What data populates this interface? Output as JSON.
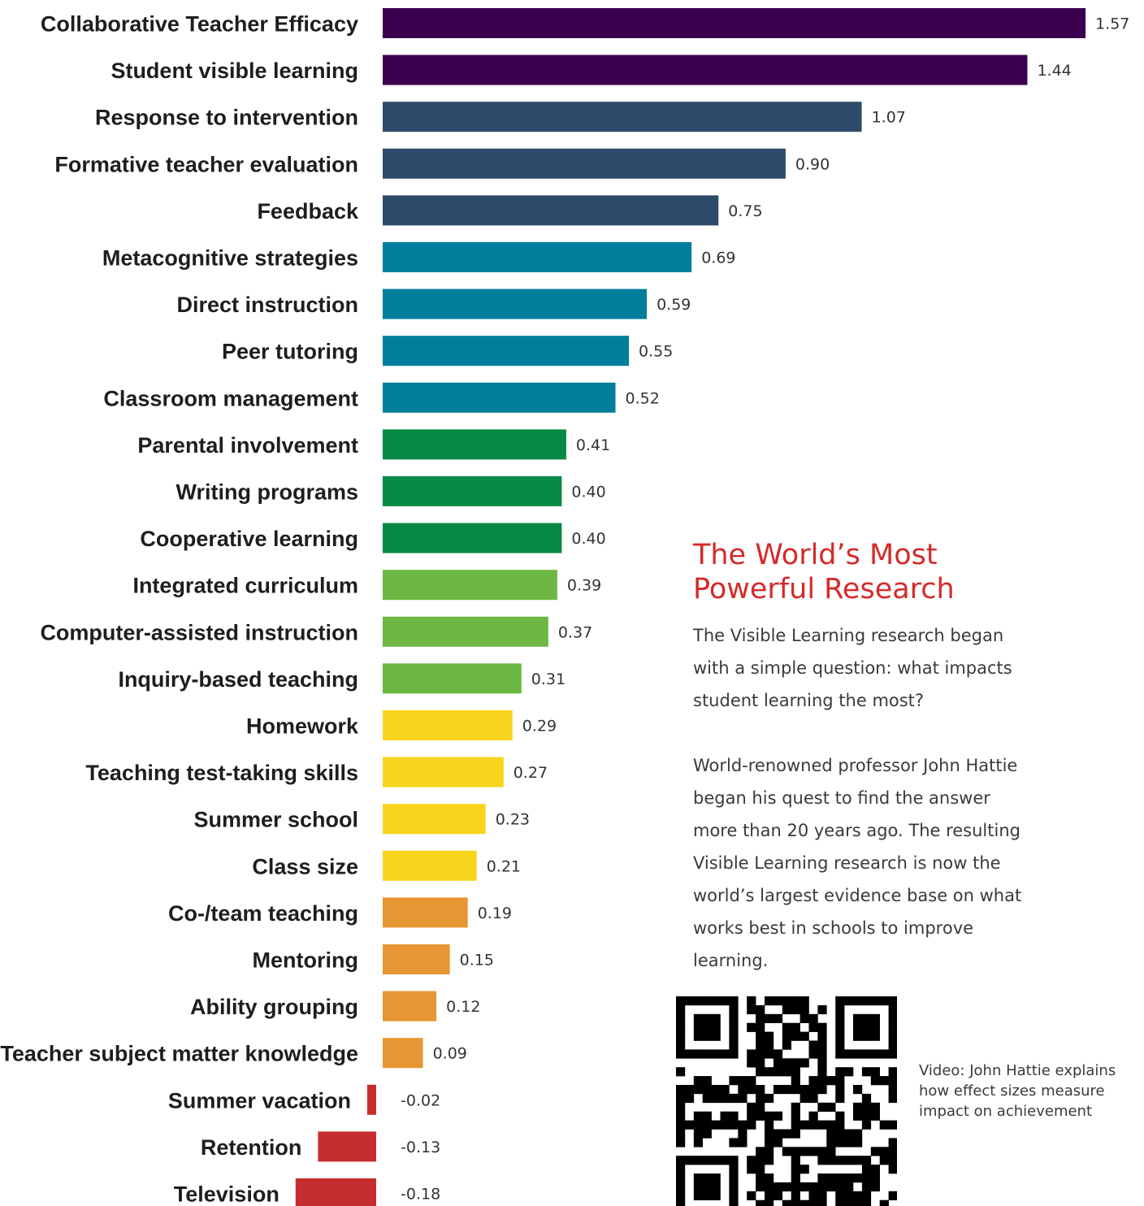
{
  "chart_data": {
    "type": "bar",
    "orientation": "horizontal",
    "title": "",
    "xlabel": "",
    "ylabel": "",
    "xlim": [
      -0.18,
      1.57
    ],
    "grid": false,
    "legend": "none",
    "categories": [
      "Collaborative Teacher Efficacy",
      "Student visible learning",
      "Response to intervention",
      "Formative teacher evaluation",
      "Feedback",
      "Metacognitive strategies",
      "Direct instruction",
      "Peer tutoring",
      "Classroom management",
      "Parental involvement",
      "Writing programs",
      "Cooperative learning",
      "Integrated curriculum",
      "Computer-assisted instruction",
      "Inquiry-based teaching",
      "Homework",
      "Teaching test-taking skills",
      "Summer school",
      "Class size",
      "Co-/team teaching",
      "Mentoring",
      "Ability grouping",
      "Teacher subject matter knowledge",
      "Summer vacation",
      "Retention",
      "Television"
    ],
    "values": [
      1.57,
      1.44,
      1.07,
      0.9,
      0.75,
      0.69,
      0.59,
      0.55,
      0.52,
      0.41,
      0.4,
      0.4,
      0.39,
      0.37,
      0.31,
      0.29,
      0.27,
      0.23,
      0.21,
      0.19,
      0.15,
      0.12,
      0.09,
      -0.02,
      -0.13,
      -0.18
    ],
    "value_labels": [
      "1.57",
      "1.44",
      "1.07",
      "0.90",
      "0.75",
      "0.69",
      "0.59",
      "0.55",
      "0.52",
      "0.41",
      "0.40",
      "0.40",
      "0.39",
      "0.37",
      "0.31",
      "0.29",
      "0.27",
      "0.23",
      "0.21",
      "0.19",
      "0.15",
      "0.12",
      "0.09",
      "-0.02",
      "-0.13",
      "-0.18"
    ],
    "colors": [
      "#3a004f",
      "#3a004f",
      "#2d4a6a",
      "#2d4a6a",
      "#2d4a6a",
      "#007e9c",
      "#007e9c",
      "#007e9c",
      "#007e9c",
      "#078a45",
      "#078a45",
      "#078a45",
      "#6db843",
      "#6db843",
      "#6db843",
      "#f8d41d",
      "#f8d41d",
      "#f8d41d",
      "#f8d41d",
      "#e69632",
      "#e69632",
      "#e69632",
      "#e69632",
      "#c62d2d",
      "#c62d2d",
      "#c62d2d"
    ]
  },
  "sidebar": {
    "heading_line1": "The World’s Most",
    "heading_line2": "Powerful Research",
    "paragraph1": "The Visible Learning research began\nwith a simple question: what impacts\nstudent learning the most?",
    "paragraph2": "World-renowned professor John Hattie\nbegan his quest to find the answer\nmore than 20 years ago. The resulting\nVisible Learning research is now the\nworld’s largest evidence base on what\nworks best in schools to improve\nlearning.",
    "video_caption": "Video: John Hattie explains how effect sizes measure impact on achievement",
    "heading_color": "#d42a2a"
  }
}
